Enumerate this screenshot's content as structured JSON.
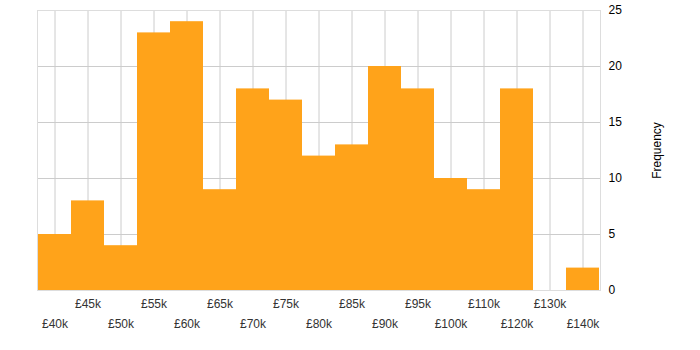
{
  "chart_data": {
    "type": "bar",
    "categories": [
      "£40k",
      "£45k",
      "£50k",
      "£55k",
      "£60k",
      "£65k",
      "£70k",
      "£75k",
      "£80k",
      "£85k",
      "£90k",
      "£95k",
      "£100k",
      "£110k",
      "£120k",
      "£130k",
      "£140k"
    ],
    "values": [
      5,
      8,
      4,
      23,
      24,
      9,
      18,
      17,
      12,
      13,
      20,
      18,
      10,
      9,
      18,
      0,
      2
    ],
    "color": "#ffa31a",
    "ylabel": "Frequency",
    "ylim": [
      0,
      25
    ],
    "yticks": [
      0,
      5,
      10,
      15,
      20,
      25
    ],
    "grid": true
  }
}
